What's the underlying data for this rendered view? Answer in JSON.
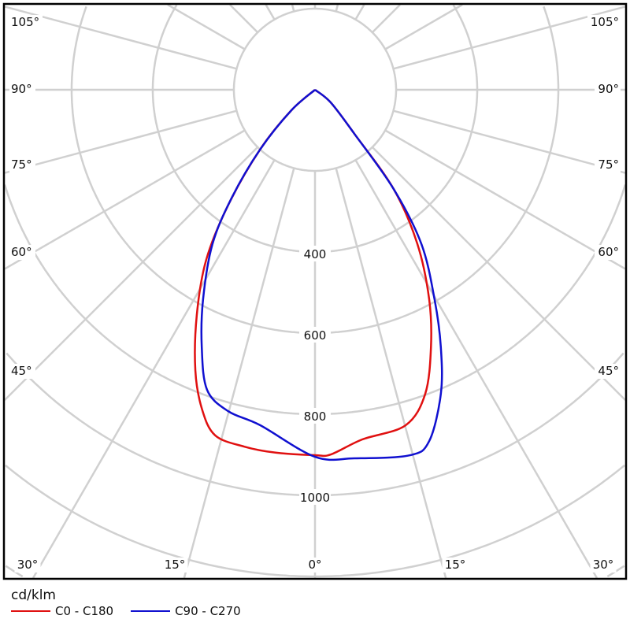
{
  "chart_data": {
    "type": "polar",
    "unit_label": "cd/klm",
    "radial_ticks": [
      200,
      400,
      600,
      800,
      1000,
      1200,
      1400
    ],
    "radial_tick_labels": [
      "400",
      "600",
      "800",
      "1000"
    ],
    "angle_labels_left": [
      "105°",
      "90°",
      "75°",
      "60°",
      "45°"
    ],
    "angle_labels_right": [
      "105°",
      "90°",
      "75°",
      "60°",
      "45°"
    ],
    "angle_labels_bottom": [
      "30°",
      "15°",
      "0°",
      "15°",
      "30°"
    ],
    "grid": true,
    "legend_position": "bottom-left",
    "series": [
      {
        "name": "C0 - C180",
        "color": "#e01010",
        "points": [
          [
            -90,
            0
          ],
          [
            -49,
            77
          ],
          [
            -42.6,
            200
          ],
          [
            -37,
            355
          ],
          [
            -32.6,
            498
          ],
          [
            -27.7,
            627
          ],
          [
            -23.1,
            752
          ],
          [
            -19.5,
            835
          ],
          [
            -16.1,
            887
          ],
          [
            -11.2,
            897
          ],
          [
            -6.2,
            900
          ],
          [
            0,
            901
          ],
          [
            2.5,
            900
          ],
          [
            7.7,
            870
          ],
          [
            15.1,
            857
          ],
          [
            19.9,
            798
          ],
          [
            24.3,
            695
          ],
          [
            28.6,
            588
          ],
          [
            33.6,
            456
          ],
          [
            38.4,
            312
          ],
          [
            41.8,
            146
          ],
          [
            51,
            50
          ],
          [
            90,
            0
          ]
        ]
      },
      {
        "name": "C90 - C270",
        "color": "#1010d0",
        "points": [
          [
            -90,
            0
          ],
          [
            -49,
            77
          ],
          [
            -42.6,
            200
          ],
          [
            -37.7,
            334
          ],
          [
            -33.6,
            457
          ],
          [
            -28.1,
            586
          ],
          [
            -23.8,
            692
          ],
          [
            -19.8,
            786
          ],
          [
            -15.1,
            821
          ],
          [
            -9.3,
            838
          ],
          [
            0,
            905
          ],
          [
            6.1,
            914
          ],
          [
            14.5,
            931
          ],
          [
            18,
            911
          ],
          [
            22.5,
            811
          ],
          [
            26.1,
            705
          ],
          [
            29.7,
            595
          ],
          [
            34.6,
            462
          ],
          [
            38.4,
            312
          ],
          [
            41.8,
            146
          ],
          [
            51,
            50
          ],
          [
            90,
            0
          ]
        ]
      }
    ]
  }
}
